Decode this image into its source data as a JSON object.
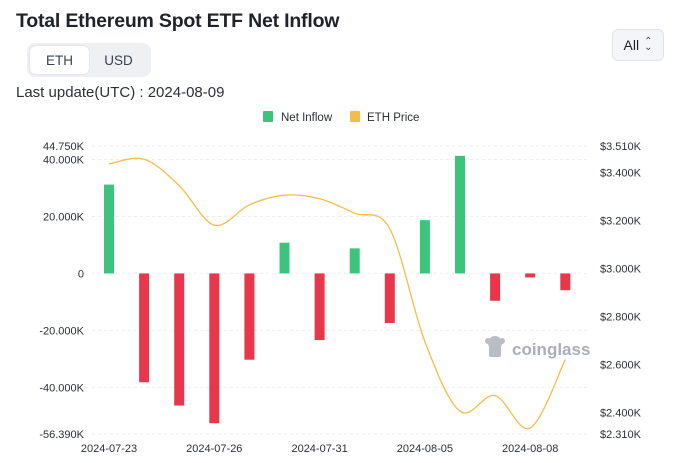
{
  "header": {
    "title": "Total Ethereum Spot ETF Net Inflow",
    "toggle": [
      "ETH",
      "USD"
    ],
    "range_label": "All",
    "last_update": "Last update(UTC) : 2024-08-09"
  },
  "watermark": "coinglass",
  "colors": {
    "positive": "#3cc47c",
    "negative": "#e8374a",
    "price_line": "#f3bd4a",
    "grid": "#eceef2"
  },
  "chart_data": {
    "type": "bar",
    "categories": [
      "2024-07-23",
      "2024-07-24",
      "2024-07-25",
      "2024-07-26",
      "2024-07-29",
      "2024-07-30",
      "2024-07-31",
      "2024-08-01",
      "2024-08-02",
      "2024-08-05",
      "2024-08-06",
      "2024-08-07",
      "2024-08-08",
      "2024-08-09"
    ],
    "x_tick_labels": [
      "2024-07-23",
      "2024-07-26",
      "2024-07-31",
      "2024-08-05",
      "2024-08-08"
    ],
    "x_tick_indices": [
      0,
      3,
      6,
      9,
      12
    ],
    "series": [
      {
        "name": "Net Inflow",
        "type": "bar",
        "axis": "left",
        "values": [
          31200,
          -38200,
          -46400,
          -52600,
          -30300,
          10800,
          -23400,
          8800,
          -17400,
          18700,
          41300,
          -9600,
          -1400,
          -5900
        ]
      },
      {
        "name": "ETH Price",
        "type": "line",
        "axis": "right",
        "values": [
          3435,
          3455,
          3345,
          3180,
          3265,
          3305,
          3290,
          3230,
          3165,
          2695,
          2405,
          2470,
          2335,
          2620
        ]
      }
    ],
    "ylim_left": [
      -56390,
      44750
    ],
    "yticks_left": [
      {
        "v": 44750,
        "label": "44.750K"
      },
      {
        "v": 40000,
        "label": "40.000K"
      },
      {
        "v": 20000,
        "label": "20.000K"
      },
      {
        "v": 0,
        "label": "0"
      },
      {
        "v": -20000,
        "label": "-20.000K"
      },
      {
        "v": -40000,
        "label": "-40.000K"
      },
      {
        "v": -56390,
        "label": "-56.390K"
      }
    ],
    "ylim_right": [
      2310,
      3510
    ],
    "yticks_right": [
      {
        "v": 3510,
        "label": "$3.510K"
      },
      {
        "v": 3400,
        "label": "$3.400K"
      },
      {
        "v": 3200,
        "label": "$3.200K"
      },
      {
        "v": 3000,
        "label": "$3.000K"
      },
      {
        "v": 2800,
        "label": "$2.800K"
      },
      {
        "v": 2600,
        "label": "$2.600K"
      },
      {
        "v": 2400,
        "label": "$2.400K"
      },
      {
        "v": 2310,
        "label": "$2.310K"
      }
    ],
    "legend": {
      "position": "top-center",
      "items": [
        "Net Inflow",
        "ETH Price"
      ]
    },
    "grid": true
  }
}
